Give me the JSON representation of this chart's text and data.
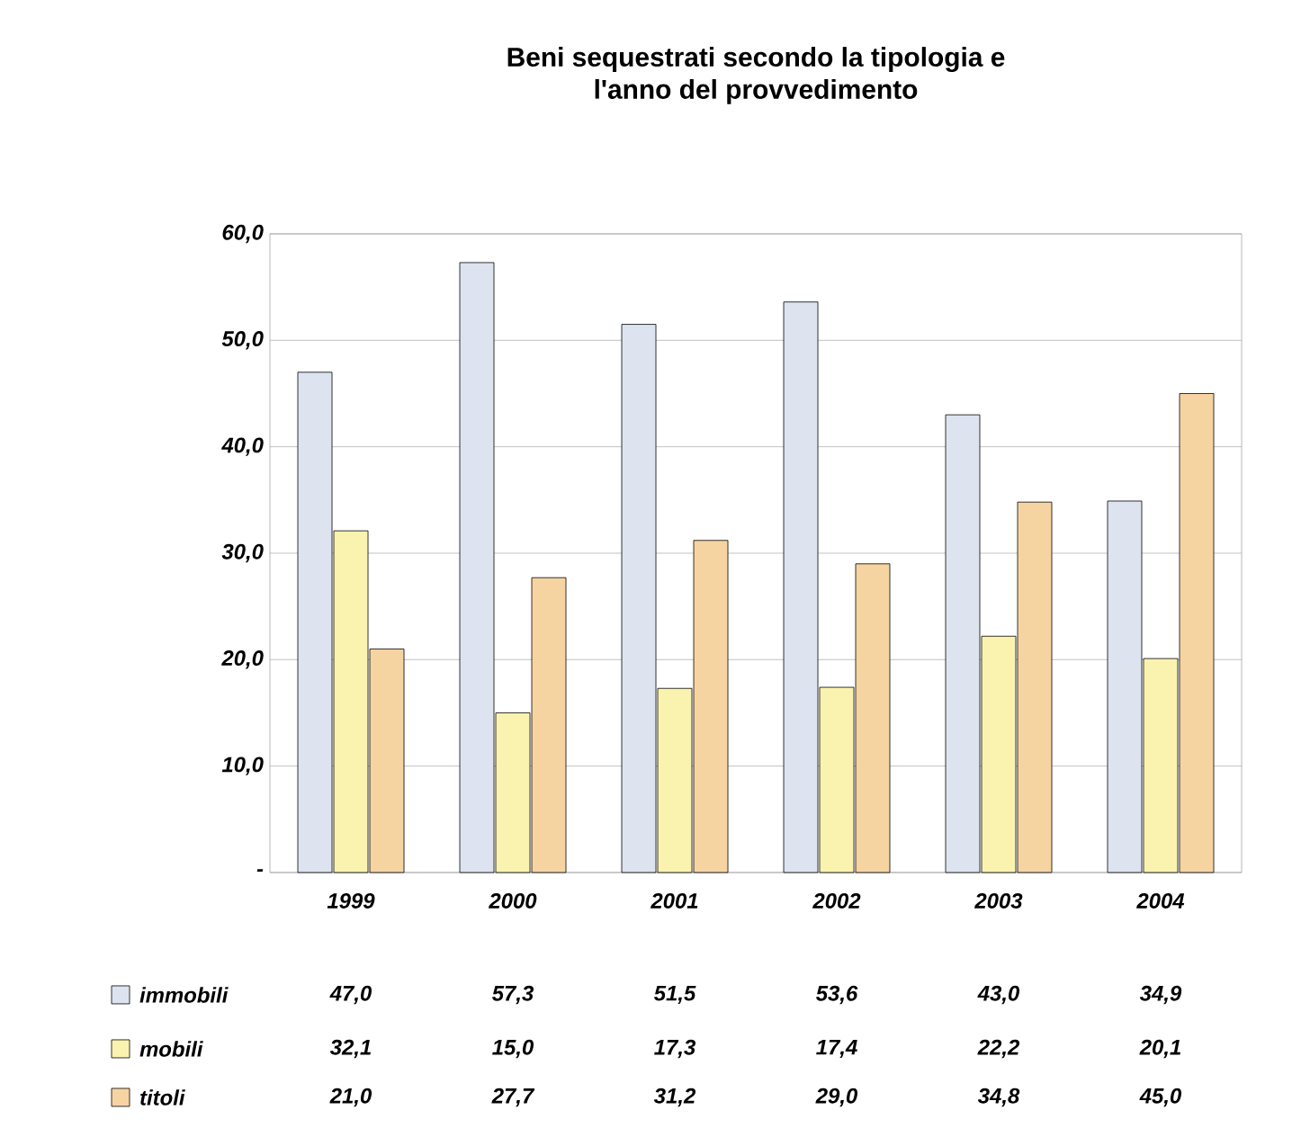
{
  "chart_data": {
    "type": "bar",
    "title": "Beni sequestrati secondo la tipologia e\nl'anno del provvedimento",
    "categories": [
      "1999",
      "2000",
      "2001",
      "2002",
      "2003",
      "2004"
    ],
    "series": [
      {
        "name": "immobili",
        "color": "#dde4f0",
        "values": [
          47.0,
          57.3,
          51.5,
          53.6,
          43.0,
          34.9
        ],
        "value_labels": [
          "47,0",
          "57,3",
          "51,5",
          "53,6",
          "43,0",
          "34,9"
        ]
      },
      {
        "name": "mobili",
        "color": "#faf3b0",
        "values": [
          32.1,
          15.0,
          17.3,
          17.4,
          22.2,
          20.1
        ],
        "value_labels": [
          "32,1",
          "15,0",
          "17,3",
          "17,4",
          "22,2",
          "20,1"
        ]
      },
      {
        "name": "titoli",
        "color": "#f6d4a2",
        "values": [
          21.0,
          27.7,
          31.2,
          29.0,
          34.8,
          45.0
        ],
        "value_labels": [
          "21,0",
          "27,7",
          "31,2",
          "29,0",
          "34,8",
          "45,0"
        ]
      }
    ],
    "ylim": [
      0,
      60
    ],
    "yticks": [
      {
        "value": 0,
        "label": "-"
      },
      {
        "value": 10,
        "label": "10,0"
      },
      {
        "value": 20,
        "label": "20,0"
      },
      {
        "value": 30,
        "label": "30,0"
      },
      {
        "value": 40,
        "label": "40,0"
      },
      {
        "value": 50,
        "label": "50,0"
      },
      {
        "value": 60,
        "label": "60,0"
      }
    ],
    "grid": "y",
    "legend": "bottom"
  }
}
